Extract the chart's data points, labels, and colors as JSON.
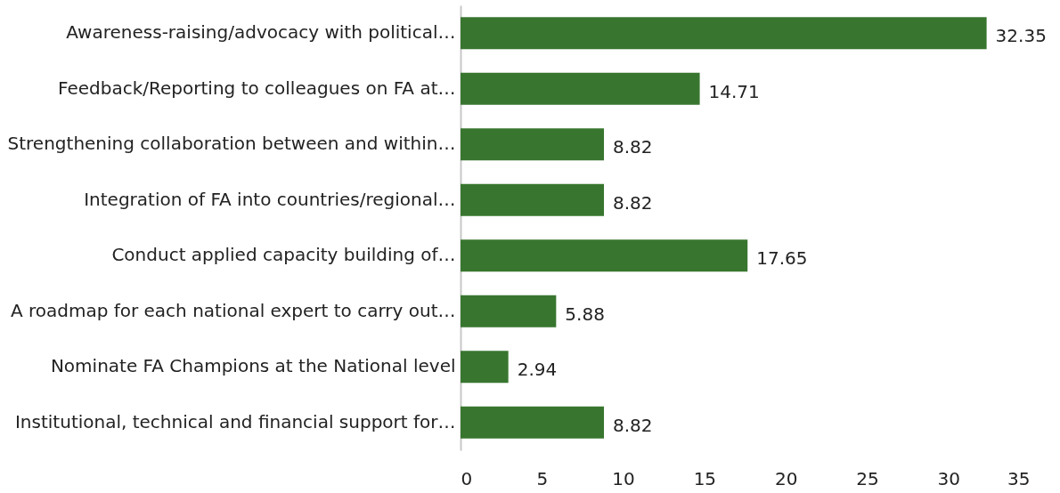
{
  "chart_data": {
    "type": "bar",
    "orientation": "horizontal",
    "categories": [
      "Awareness-raising/advocacy with political…",
      "Feedback/Reporting to colleagues on FA at…",
      "Strengthening collaboration between and within…",
      "Integration of FA into countries/regional…",
      "Conduct applied capacity building of…",
      "A roadmap for each national expert to carry out…",
      "Nominate FA Champions at the National level",
      "Institutional, technical and financial support for…"
    ],
    "values": [
      32.35,
      14.71,
      8.82,
      8.82,
      17.65,
      5.88,
      2.94,
      8.82
    ],
    "color": "#38762f",
    "xlim": [
      0,
      35
    ],
    "xticks": [
      0,
      5,
      10,
      15,
      20,
      25,
      30,
      35
    ],
    "data_labels": true
  }
}
